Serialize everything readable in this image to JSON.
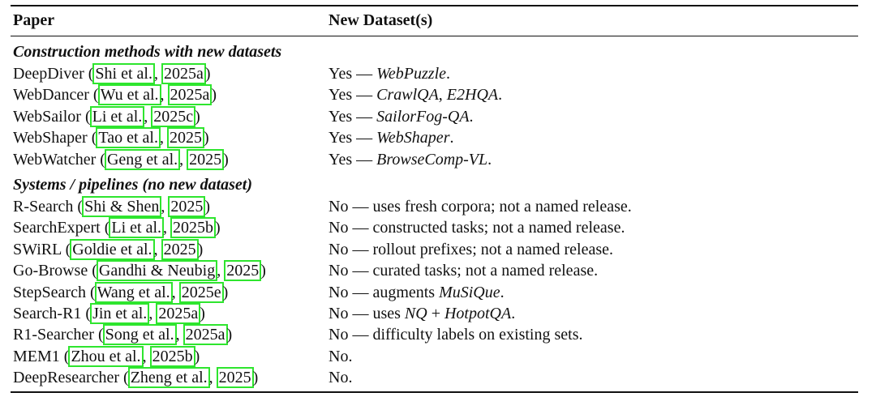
{
  "table": {
    "headers": {
      "paper": "Paper",
      "datasets": "New Dataset(s)"
    },
    "sections": [
      {
        "title": "Construction methods with new datasets",
        "rows": [
          {
            "name": "DeepDiver",
            "cite_author": "Shi et al.",
            "cite_year": "2025a",
            "answer": "Yes — ",
            "ds1": "WebPuzzle",
            "sep": "",
            "ds2": "",
            "tail": "."
          },
          {
            "name": "WebDancer",
            "cite_author": "Wu et al.",
            "cite_year": "2025a",
            "answer": "Yes — ",
            "ds1": "CrawlQA",
            "sep": ", ",
            "ds2": "E2HQA",
            "tail": "."
          },
          {
            "name": "WebSailor",
            "cite_author": "Li et al.",
            "cite_year": "2025c",
            "answer": "Yes — ",
            "ds1": "SailorFog-QA",
            "sep": "",
            "ds2": "",
            "tail": "."
          },
          {
            "name": "WebShaper",
            "cite_author": "Tao et al.",
            "cite_year": "2025",
            "answer": "Yes — ",
            "ds1": "WebShaper",
            "sep": "",
            "ds2": "",
            "tail": "."
          },
          {
            "name": "WebWatcher",
            "cite_author": "Geng et al.",
            "cite_year": "2025",
            "answer": "Yes — ",
            "ds1": "BrowseComp-VL",
            "sep": "",
            "ds2": "",
            "tail": "."
          }
        ]
      },
      {
        "title": "Systems / pipelines (no new dataset)",
        "rows": [
          {
            "name": "R-Search",
            "cite_author": "Shi & Shen",
            "cite_year": "2025",
            "answer": "No — uses fresh corpora; not a named release.",
            "ds1": "",
            "sep": "",
            "ds2": "",
            "tail": ""
          },
          {
            "name": "SearchExpert",
            "cite_author": "Li et al.",
            "cite_year": "2025b",
            "answer": "No — constructed tasks; not a named release.",
            "ds1": "",
            "sep": "",
            "ds2": "",
            "tail": ""
          },
          {
            "name": "SWiRL",
            "cite_author": "Goldie et al.",
            "cite_year": "2025",
            "answer": "No — rollout prefixes; not a named release.",
            "ds1": "",
            "sep": "",
            "ds2": "",
            "tail": ""
          },
          {
            "name": "Go-Browse",
            "cite_author": "Gandhi & Neubig",
            "cite_year": "2025",
            "answer": "No — curated tasks; not a named release.",
            "ds1": "",
            "sep": "",
            "ds2": "",
            "tail": ""
          },
          {
            "name": "StepSearch",
            "cite_author": "Wang et al.",
            "cite_year": "2025e",
            "answer": "No — augments ",
            "ds1": "MuSiQue",
            "sep": "",
            "ds2": "",
            "tail": "."
          },
          {
            "name": "Search-R1",
            "cite_author": "Jin et al.",
            "cite_year": "2025a",
            "answer": "No — uses ",
            "ds1": "NQ",
            "sep": " + ",
            "ds2": "HotpotQA",
            "tail": "."
          },
          {
            "name": "R1-Searcher",
            "cite_author": "Song et al.",
            "cite_year": "2025a",
            "answer": "No — difficulty labels on existing sets.",
            "ds1": "",
            "sep": "",
            "ds2": "",
            "tail": ""
          },
          {
            "name": "MEM1",
            "cite_author": "Zhou et al.",
            "cite_year": "2025b",
            "answer": "No.",
            "ds1": "",
            "sep": "",
            "ds2": "",
            "tail": ""
          },
          {
            "name": "DeepResearcher",
            "cite_author": "Zheng et al.",
            "cite_year": "2025",
            "answer": "No.",
            "ds1": "",
            "sep": "",
            "ds2": "",
            "tail": ""
          }
        ]
      }
    ]
  }
}
